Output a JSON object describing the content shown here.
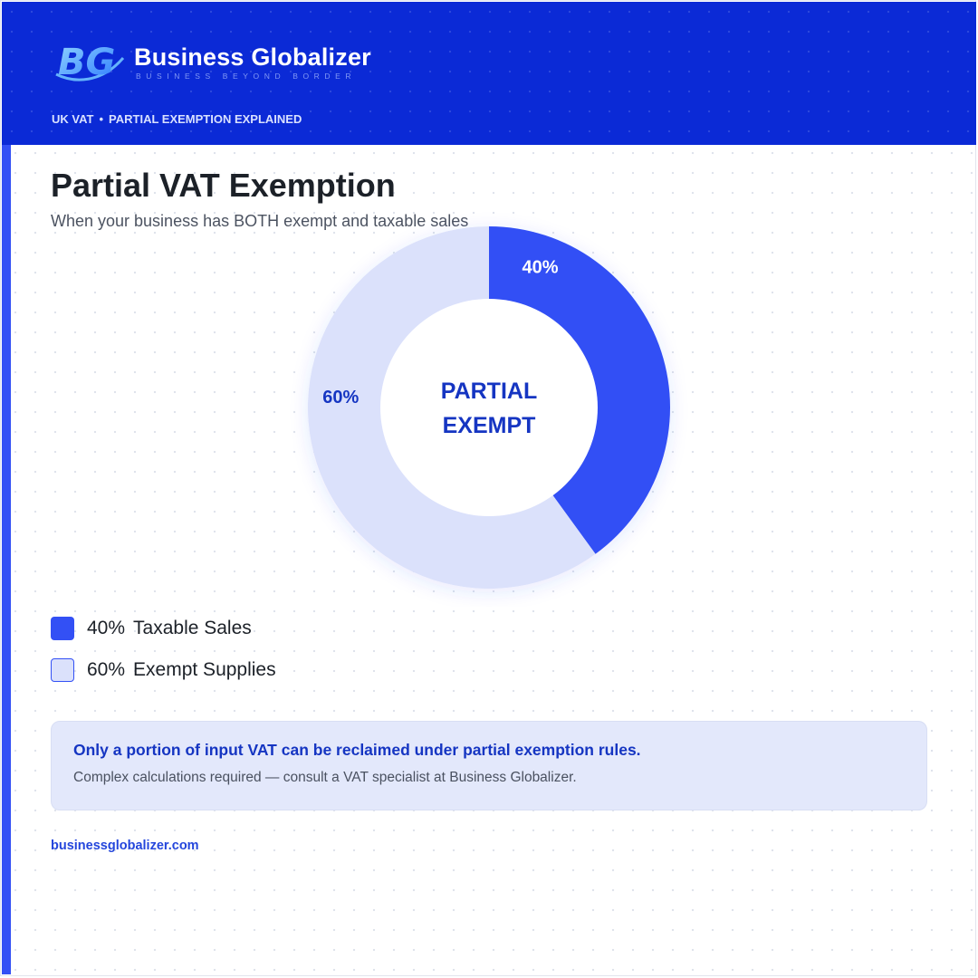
{
  "header": {
    "logo_text": "BG",
    "brand_name": "Business Globalizer",
    "tagline": "BUSINESS BEYOND BORDER",
    "eyebrow": [
      "UK VAT",
      "PARTIAL EXEMPTION EXPLAINED"
    ],
    "eyebrow_separator": "•",
    "background_color": "#0b2ad6"
  },
  "title": "Partial VAT Exemption",
  "subtitle": "When your business has BOTH exempt and taxable sales",
  "chart_data": {
    "type": "pie",
    "donut": true,
    "center_label": [
      "PARTIAL",
      "EXEMPT"
    ],
    "series": [
      {
        "name": "Taxable Sales",
        "value": 40,
        "label": "40%",
        "color": "#3350f5",
        "label_color": "#ffffff"
      },
      {
        "name": "Exempt Supplies",
        "value": 60,
        "label": "60%",
        "color": "#dbe1fb",
        "label_color": "#1535c2"
      }
    ],
    "start_angle_deg": 0,
    "direction": "clockwise",
    "legend_position": "bottom-left"
  },
  "legend": [
    {
      "pct": "40%",
      "label": "Taxable Sales",
      "color": "#3350f5"
    },
    {
      "pct": "60%",
      "label": "Exempt Supplies",
      "color": "#dbe1fb"
    }
  ],
  "note": {
    "title": "Only a portion of input VAT can be reclaimed under partial exemption rules.",
    "body": "Complex calculations required — consult a VAT specialist at Business Globalizer."
  },
  "footer": {
    "link": "businessglobalizer.com"
  },
  "colors": {
    "accent": "#3350f5",
    "brand_blue": "#0b2ad6",
    "light_blue": "#dbe1fb",
    "note_bg": "#e3e8fb",
    "dark_text": "#1c2128"
  }
}
